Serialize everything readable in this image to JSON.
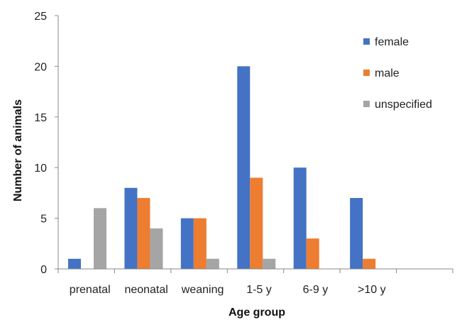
{
  "chart_data": {
    "type": "bar",
    "title": "",
    "xlabel": "Age group",
    "ylabel": "Number of animals",
    "ylim": [
      0,
      25
    ],
    "yticks": [
      0,
      5,
      10,
      15,
      20,
      25
    ],
    "categories": [
      "prenatal",
      "neonatal",
      "weaning",
      "1-5 y",
      "6-9 y",
      ">10 y",
      ""
    ],
    "series": [
      {
        "name": "female",
        "color": "#4472C4",
        "values": [
          1,
          8,
          5,
          20,
          10,
          7,
          0
        ]
      },
      {
        "name": "male",
        "color": "#ED7D31",
        "values": [
          0,
          7,
          5,
          9,
          3,
          1,
          0
        ]
      },
      {
        "name": "unspecified",
        "color": "#A5A5A5",
        "values": [
          6,
          4,
          1,
          1,
          0,
          0,
          0
        ]
      }
    ],
    "grid": false,
    "legend": "top-right"
  }
}
